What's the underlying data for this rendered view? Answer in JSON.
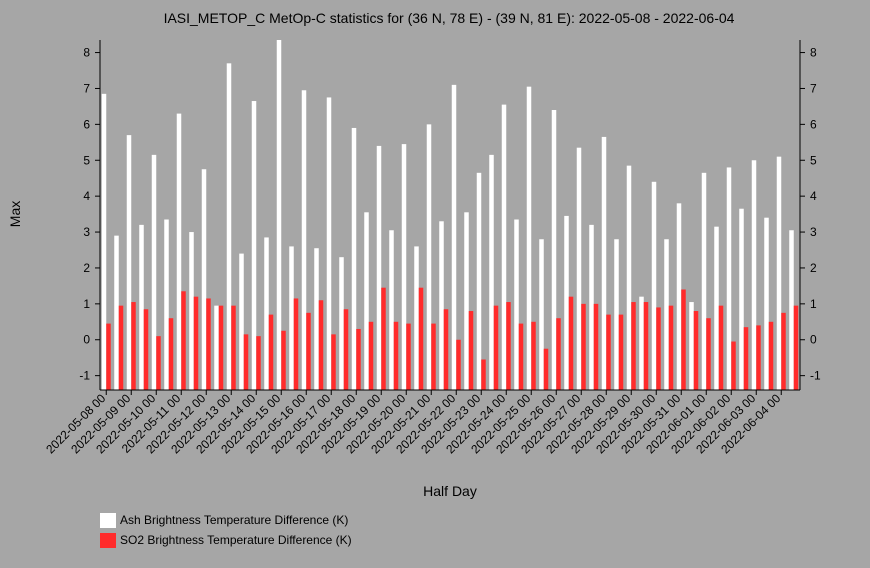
{
  "chart_data": {
    "type": "bar",
    "title": "IASI_METOP_C MetOp-C statistics for (36 N, 78 E) - (39 N, 81 E): 2022-05-08 - 2022-06-04",
    "xlabel": "Half Day",
    "ylabel": "Max",
    "ylim": [
      -1.4,
      8.35
    ],
    "yticks": [
      -1,
      0,
      1,
      2,
      3,
      4,
      5,
      6,
      7,
      8
    ],
    "grid": false,
    "legend_position": "bottom-left",
    "x_tick_labels": [
      "2022-05-08 00",
      "2022-05-09 00",
      "2022-05-10 00",
      "2022-05-11 00",
      "2022-05-12 00",
      "2022-05-13 00",
      "2022-05-14 00",
      "2022-05-15 00",
      "2022-05-16 00",
      "2022-05-17 00",
      "2022-05-18 00",
      "2022-05-19 00",
      "2022-05-20 00",
      "2022-05-21 00",
      "2022-05-22 00",
      "2022-05-23 00",
      "2022-05-24 00",
      "2022-05-25 00",
      "2022-05-26 00",
      "2022-05-27 00",
      "2022-05-28 00",
      "2022-05-29 00",
      "2022-05-30 00",
      "2022-05-31 00",
      "2022-06-01 00",
      "2022-06-02 00",
      "2022-06-03 00",
      "2022-06-04 00"
    ],
    "series": [
      {
        "name": "Ash Brightness Temperature Difference (K)",
        "color": "#ffffff",
        "values": [
          6.85,
          2.9,
          5.7,
          3.2,
          5.15,
          3.35,
          6.3,
          3.0,
          4.75,
          0.95,
          7.7,
          2.4,
          6.65,
          2.85,
          8.35,
          2.6,
          6.95,
          2.55,
          6.75,
          2.3,
          5.9,
          3.55,
          5.4,
          3.05,
          5.45,
          2.6,
          6.0,
          3.3,
          7.1,
          3.55,
          4.65,
          5.15,
          6.55,
          3.35,
          7.05,
          2.8,
          6.4,
          3.45,
          5.35,
          3.2,
          5.65,
          2.8,
          4.85,
          1.2,
          4.4,
          2.8,
          3.8,
          1.05,
          4.65,
          3.15,
          4.8,
          3.65,
          5.0,
          3.4,
          5.1,
          3.05
        ]
      },
      {
        "name": "SO2 Brightness Temperature Difference (K)",
        "color": "#ff2b2b",
        "values": [
          0.45,
          0.95,
          1.05,
          0.85,
          0.1,
          0.6,
          1.35,
          1.2,
          1.15,
          0.95,
          0.95,
          0.15,
          0.1,
          0.7,
          0.25,
          1.15,
          0.75,
          1.1,
          0.15,
          0.85,
          0.3,
          0.5,
          1.45,
          0.5,
          0.45,
          1.45,
          0.45,
          0.85,
          0.0,
          0.8,
          -0.55,
          0.95,
          1.05,
          0.45,
          0.5,
          -0.25,
          0.6,
          1.2,
          1.0,
          1.0,
          0.7,
          0.7,
          1.05,
          1.05,
          0.9,
          0.95,
          1.4,
          0.8,
          0.6,
          0.95,
          -0.05,
          0.35,
          0.4,
          0.5,
          0.75,
          0.95
        ]
      }
    ]
  }
}
